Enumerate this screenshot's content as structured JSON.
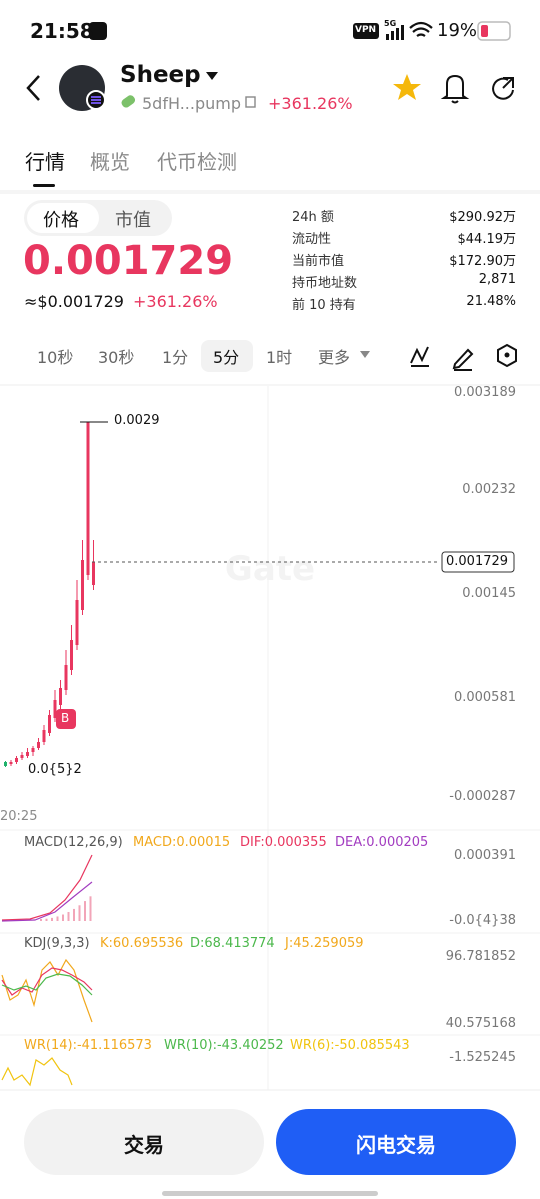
{
  "status_bar": {
    "time": "21:58",
    "vpn": "VPN",
    "network": "5G",
    "battery": "19%"
  },
  "header": {
    "name": "Sheep",
    "address": "5dfH...pump",
    "change": "+361.26%"
  },
  "tabs": [
    "行情",
    "概览",
    "代币检测"
  ],
  "toggle": [
    "价格",
    "市值"
  ],
  "price": {
    "value": "0.001729",
    "usd": "≈$0.001729",
    "change": "+361.26%"
  },
  "stats": [
    [
      "24h 额",
      "$290.92万"
    ],
    [
      "流动性",
      "$44.19万"
    ],
    [
      "当前市值",
      "$172.90万"
    ],
    [
      "持币地址数",
      "2,871"
    ],
    [
      "前 10 持有",
      "21.48%"
    ]
  ],
  "intervals": [
    "10秒",
    "30秒",
    "1分",
    "5分",
    "1时",
    "更多"
  ],
  "chart": {
    "axis": [
      "0.003189",
      "0.00232",
      "0.00145",
      "0.000581",
      "-0.000287"
    ],
    "current": "0.001729",
    "high": "0.0029",
    "low": "0.0{5}2",
    "time": "20:25",
    "marker": "B"
  },
  "macd": {
    "title": "MACD(12,26,9)",
    "macd": "MACD:0.00015",
    "dif": "DIF:0.000355",
    "dea": "DEA:0.000205",
    "axis": [
      "0.000391",
      "-0.0{4}38"
    ]
  },
  "kdj": {
    "title": "KDJ(9,3,3)",
    "k": "K:60.695536",
    "d": "D:68.413774",
    "j": "J:45.259059",
    "axis": [
      "96.781852",
      "40.575168"
    ]
  },
  "wr": {
    "wr14": "WR(14):-41.116573",
    "wr10": "WR(10):-43.40252",
    "wr6": "WR(6):-50.085543",
    "axis": [
      "-1.525245"
    ]
  },
  "buttons": [
    "交易",
    "闪电交易"
  ]
}
